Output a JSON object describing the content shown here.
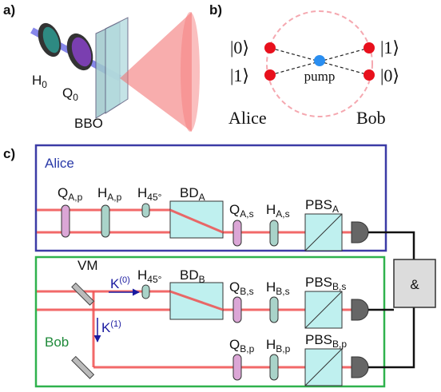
{
  "panel_a": {
    "label": "a)",
    "h0": {
      "main": "H",
      "sub": "0"
    },
    "q0": {
      "main": "Q",
      "sub": "0"
    },
    "crystal": "BBO"
  },
  "panel_b": {
    "label": "b)",
    "alice_states": [
      "|0⟩",
      "|1⟩"
    ],
    "bob_states": [
      "|1⟩",
      "|0⟩"
    ],
    "pump": "pump",
    "alice": "Alice",
    "bob": "Bob"
  },
  "panel_c": {
    "label": "c)",
    "alice_box": "Alice",
    "bob_box": "Bob",
    "coincidence": "&",
    "vm": "VM",
    "k0": {
      "main": "K",
      "sup": "(0)"
    },
    "k1": {
      "main": "K",
      "sup": "(1)"
    },
    "alice_components": [
      {
        "main": "Q",
        "sub": "A,p"
      },
      {
        "main": "H",
        "sub": "A,p"
      },
      {
        "main": "H",
        "sub": "45°"
      },
      {
        "main": "BD",
        "sub": "A"
      },
      {
        "main": "Q",
        "sub": "A,s"
      },
      {
        "main": "H",
        "sub": "A,s"
      },
      {
        "main": "PBS",
        "sub": "A"
      }
    ],
    "bob_s_components": [
      {
        "main": "H",
        "sub": "45°"
      },
      {
        "main": "BD",
        "sub": "B"
      },
      {
        "main": "Q",
        "sub": "B,s"
      },
      {
        "main": "H",
        "sub": "B,s"
      },
      {
        "main": "PBS",
        "sub": "B,s"
      }
    ],
    "bob_p_components": [
      {
        "main": "Q",
        "sub": "B,p"
      },
      {
        "main": "H",
        "sub": "B,p"
      },
      {
        "main": "PBS",
        "sub": "B,p"
      }
    ]
  }
}
